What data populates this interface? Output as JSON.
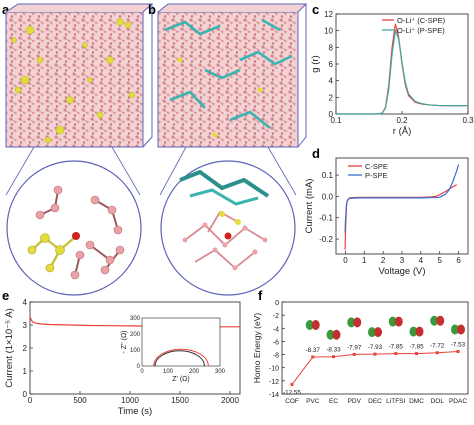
{
  "panels": {
    "a": {
      "letter": "a"
    },
    "b": {
      "letter": "b"
    },
    "c": {
      "letter": "c"
    },
    "d": {
      "letter": "d"
    },
    "e": {
      "letter": "e"
    },
    "f": {
      "letter": "f"
    }
  },
  "colors": {
    "red": "#e8423a",
    "teal": "#3aa9a3",
    "pink": "#e9a3a8",
    "yellow": "#e3dc3a",
    "blue_box": "#5b63b7",
    "cyan": "#3bb3b0"
  },
  "chart_data": [
    {
      "id": "c",
      "type": "line",
      "xlabel": "r (Å)",
      "ylabel": "g (r)",
      "xlim": [
        0.1,
        0.3
      ],
      "ylim": [
        0,
        12
      ],
      "xticks": [
        "0.1",
        "0.2",
        "0.3"
      ],
      "yticks": [
        "0",
        "2",
        "4",
        "6",
        "8",
        "10",
        "12"
      ],
      "legend": [
        "O-Li⁺ (C-SPE)",
        "O-Li⁺ (P-SPE)"
      ],
      "series": [
        {
          "name": "O-Li⁺ (C-SPE)",
          "color": "#e8423a",
          "x": [
            0.1,
            0.16,
            0.17,
            0.175,
            0.18,
            0.185,
            0.19,
            0.195,
            0.2,
            0.205,
            0.21,
            0.22,
            0.23,
            0.24,
            0.25,
            0.26,
            0.28,
            0.3
          ],
          "y": [
            0,
            0,
            0.1,
            0.8,
            3.5,
            8.0,
            10.8,
            9.2,
            6.0,
            3.5,
            2.2,
            1.4,
            1.2,
            1.1,
            1.05,
            1.0,
            1.0,
            1.0
          ]
        },
        {
          "name": "O-Li⁺ (P-SPE)",
          "color": "#3aa9a3",
          "x": [
            0.1,
            0.16,
            0.17,
            0.175,
            0.18,
            0.185,
            0.19,
            0.195,
            0.2,
            0.205,
            0.21,
            0.22,
            0.23,
            0.24,
            0.25,
            0.26,
            0.28,
            0.3
          ],
          "y": [
            0,
            0,
            0.1,
            0.7,
            3.0,
            7.2,
            10.0,
            9.0,
            6.2,
            3.8,
            2.4,
            1.5,
            1.25,
            1.1,
            1.05,
            1.0,
            1.0,
            1.0
          ]
        }
      ]
    },
    {
      "id": "d",
      "type": "line",
      "xlabel": "Voltage (V)",
      "ylabel": "Current (mA)",
      "xlim": [
        -0.5,
        6.5
      ],
      "ylim": [
        -0.27,
        0.18
      ],
      "xticks": [
        "0",
        "1",
        "2",
        "3",
        "4",
        "5",
        "6"
      ],
      "yticks": [
        "-0.2",
        "-0.1",
        "0.0",
        "0.1"
      ],
      "legend": [
        "C-SPE",
        "P-SPE"
      ],
      "series": [
        {
          "name": "C-SPE",
          "color": "#e8423a",
          "x": [
            -0.02,
            0.0,
            0.05,
            0.1,
            0.2,
            0.4,
            1,
            2,
            3,
            4,
            4.5,
            4.8,
            5.0,
            5.2,
            5.4,
            5.6,
            5.8,
            5.9
          ],
          "y": [
            -0.25,
            -0.18,
            -0.05,
            -0.02,
            -0.008,
            -0.005,
            -0.004,
            -0.004,
            -0.004,
            -0.004,
            -0.003,
            0.0,
            0.008,
            0.018,
            0.028,
            0.04,
            0.05,
            0.055
          ]
        },
        {
          "name": "P-SPE",
          "color": "#3b6fc8",
          "x": [
            -0.02,
            0.0,
            0.05,
            0.1,
            0.2,
            0.4,
            1,
            2,
            3,
            4,
            4.5,
            5.0,
            5.3,
            5.5,
            5.7,
            5.9,
            6.0
          ],
          "y": [
            -0.17,
            -0.12,
            -0.04,
            -0.02,
            -0.01,
            -0.008,
            -0.007,
            -0.007,
            -0.007,
            -0.007,
            -0.006,
            -0.004,
            0.01,
            0.03,
            0.07,
            0.12,
            0.15
          ]
        }
      ]
    },
    {
      "id": "e",
      "type": "line",
      "xlabel": "Time (s)",
      "ylabel": "Current (1×10⁻⁵ A)",
      "xlim": [
        0,
        2100
      ],
      "ylim": [
        0,
        4
      ],
      "xticks": [
        "0",
        "500",
        "1000",
        "1500",
        "2000"
      ],
      "yticks": [
        "0",
        "1",
        "2",
        "3",
        "4"
      ],
      "series": [
        {
          "name": "",
          "color": "#e8423a",
          "x": [
            0,
            5,
            15,
            30,
            60,
            100,
            200,
            400,
            600,
            800,
            1000,
            1200,
            1400,
            1600,
            1800,
            2000,
            2100
          ],
          "y": [
            3.35,
            3.3,
            3.2,
            3.12,
            3.08,
            3.05,
            3.02,
            3.0,
            2.98,
            2.97,
            2.96,
            2.95,
            2.94,
            2.93,
            2.92,
            2.92,
            2.92
          ]
        }
      ],
      "inset": {
        "xlabel": "Z' (Ω)",
        "ylabel": "- Z'' (Ω)",
        "xlim": [
          0,
          300
        ],
        "ylim": [
          0,
          300
        ],
        "xticks": [
          "0",
          "100",
          "200",
          "300"
        ],
        "yticks": [
          "0",
          "100",
          "200",
          "300"
        ],
        "series": [
          {
            "name": "",
            "color": "#e8423a",
            "center": 150,
            "radius": 105
          },
          {
            "name": "",
            "color": "#333333",
            "center": 145,
            "radius": 95
          }
        ]
      }
    },
    {
      "id": "f",
      "type": "line",
      "ylabel": "Homo Energy (eV)",
      "ylim": [
        -14,
        0
      ],
      "yticks": [
        "-14",
        "-12",
        "-10",
        "-8",
        "-6",
        "-4",
        "-2",
        "0"
      ],
      "categories": [
        "COF",
        "PVC",
        "EC",
        "PDV",
        "DEC",
        "LiTFSI",
        "DMC",
        "DOL",
        "PDAC"
      ],
      "values": [
        -12.55,
        -8.37,
        -8.33,
        -7.97,
        -7.93,
        -7.85,
        -7.85,
        -7.72,
        -7.53
      ],
      "labels": [
        "-12.55",
        "-8.37",
        "-8.33",
        "-7.97",
        "-7.93",
        "-7.85",
        "-7.85",
        "-7.72",
        "-7.53"
      ]
    }
  ]
}
